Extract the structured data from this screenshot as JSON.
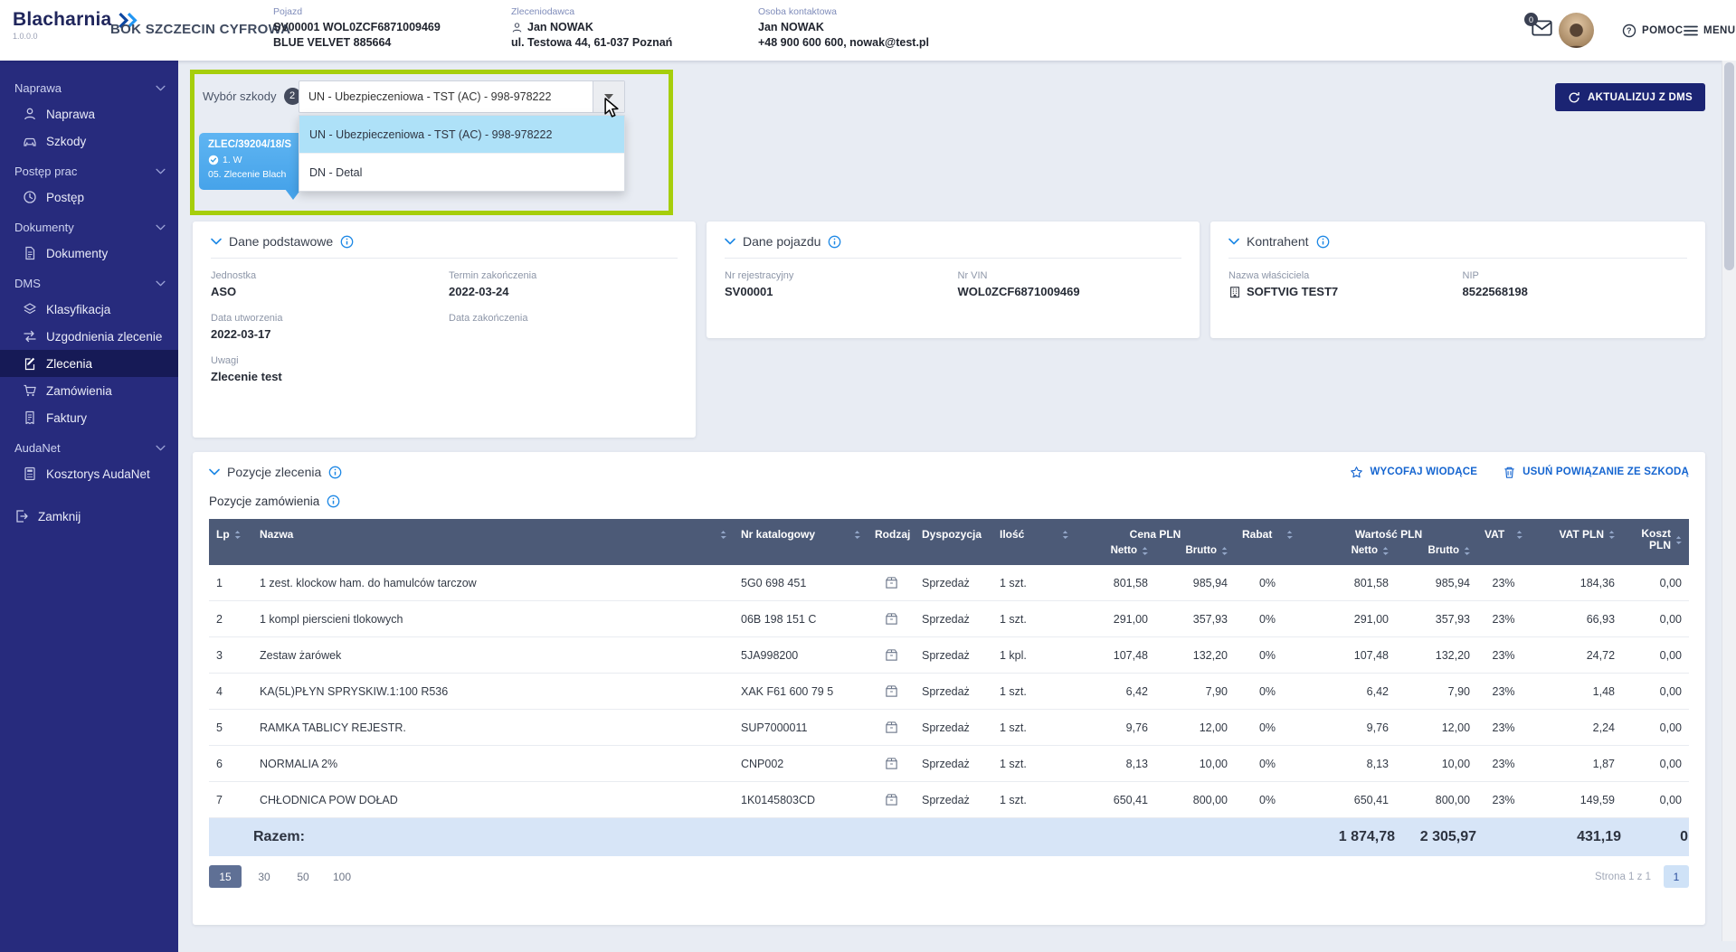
{
  "app": {
    "title": "Blacharnia",
    "version": "1.0.0.0",
    "subtitle": "BOK SZCZECIN CYFROWA"
  },
  "header": {
    "vehicle": {
      "label": "Pojazd",
      "line1": "SV00001 WOL0ZCF6871009469",
      "line2": "BLUE VELVET 885664"
    },
    "client": {
      "label": "Zleceniodawca",
      "name": "Jan NOWAK",
      "address": "ul. Testowa 44, 61-037 Poznań"
    },
    "contact": {
      "label": "Osoba kontaktowa",
      "name": "Jan NOWAK",
      "phone_email": "+48 900 600 600, nowak@test.pl"
    },
    "mail_badge": "0",
    "help": "POMOC",
    "menu": "MENU"
  },
  "sidebar": {
    "sections": [
      {
        "label": "Naprawa",
        "items": [
          {
            "label": "Naprawa",
            "icon": "person-icon"
          },
          {
            "label": "Szkody",
            "icon": "car-icon"
          }
        ]
      },
      {
        "label": "Postęp prac",
        "items": [
          {
            "label": "Postęp",
            "icon": "clock-icon"
          }
        ]
      },
      {
        "label": "Dokumenty",
        "items": [
          {
            "label": "Dokumenty",
            "icon": "document-icon"
          }
        ]
      },
      {
        "label": "DMS",
        "items": [
          {
            "label": "Klasyfikacja",
            "icon": "layers-icon"
          },
          {
            "label": "Uzgodnienia zlecenie",
            "icon": "exchange-icon"
          },
          {
            "label": "Zlecenia",
            "icon": "order-icon",
            "active": true
          },
          {
            "label": "Zamówienia",
            "icon": "cart-icon"
          },
          {
            "label": "Faktury",
            "icon": "invoice-icon"
          }
        ]
      },
      {
        "label": "AudaNet",
        "items": [
          {
            "label": "Kosztorys AudaNet",
            "icon": "calculator-icon"
          }
        ]
      }
    ],
    "footer_item": {
      "label": "Zamknij",
      "icon": "exit-icon"
    }
  },
  "damage_select": {
    "label": "Wybór szkody",
    "badge": "2",
    "separator": ":",
    "value": "UN - Ubezpieczeniowa - TST (AC) - 998-978222",
    "options": [
      {
        "label": "UN - Ubezpieczeniowa - TST (AC) - 998-978222",
        "selected": true
      },
      {
        "label": "DN - Detal",
        "selected": false
      }
    ]
  },
  "order_card": {
    "number": "ZLEC/39204/18/S",
    "status": "1. W",
    "stage": "05. Zlecenie Blach"
  },
  "update_button": "AKTUALIZUJ Z DMS",
  "cards": {
    "basic": {
      "title": "Dane podstawowe",
      "fields": [
        {
          "label": "Jednostka",
          "value": "ASO"
        },
        {
          "label": "Termin zakończenia",
          "value": "2022-03-24"
        },
        {
          "label": "Data utworzenia",
          "value": "2022-03-17"
        },
        {
          "label": "Data zakończenia",
          "value": ""
        },
        {
          "label": "Uwagi",
          "value": "Zlecenie test"
        }
      ]
    },
    "vehicle": {
      "title": "Dane pojazdu",
      "fields": [
        {
          "label": "Nr rejestracyjny",
          "value": "SV00001"
        },
        {
          "label": "Nr VIN",
          "value": "WOL0ZCF6871009469"
        }
      ]
    },
    "contractor": {
      "title": "Kontrahent",
      "fields": [
        {
          "label": "Nazwa właściciela",
          "value": "SOFTVIG TEST7",
          "icon": "building-icon"
        },
        {
          "label": "NIP",
          "value": "8522568198"
        }
      ]
    }
  },
  "positions": {
    "title": "Pozycje zlecenia",
    "subtitle": "Pozycje zamówienia",
    "actions": [
      {
        "label": "WYCOFAJ WIODĄCE",
        "icon": "star-icon"
      },
      {
        "label": "USUŃ POWIĄZANIE ZE SZKODĄ",
        "icon": "trash-icon"
      }
    ],
    "table": {
      "columns": [
        "Lp",
        "Nazwa",
        "Nr katalogowy",
        "Rodzaj",
        "Dyspozycja",
        "Ilość",
        "Cena PLN",
        "Rabat",
        "Wartość PLN",
        "VAT",
        "VAT PLN",
        "Koszt PLN"
      ],
      "subcolumns": [
        "Netto",
        "Brutto"
      ],
      "rows": [
        {
          "lp": "1",
          "name": "1 zest. klockow ham. do hamulców tarczow",
          "catalog": "5G0 698 451",
          "type_icon": "package-icon",
          "dispo": "Sprzedaż",
          "qty": "1 szt.",
          "price_net": "801,58",
          "price_gross": "985,94",
          "discount": "0%",
          "value_net": "801,58",
          "value_gross": "985,94",
          "vat": "23%",
          "vat_pln": "184,36",
          "cost": "0,00"
        },
        {
          "lp": "2",
          "name": "1 kompl pierscieni tlokowych",
          "catalog": "06B 198 151 C",
          "type_icon": "package-icon",
          "dispo": "Sprzedaż",
          "qty": "1 szt.",
          "price_net": "291,00",
          "price_gross": "357,93",
          "discount": "0%",
          "value_net": "291,00",
          "value_gross": "357,93",
          "vat": "23%",
          "vat_pln": "66,93",
          "cost": "0,00"
        },
        {
          "lp": "3",
          "name": "Zestaw żarówek",
          "catalog": "5JA998200",
          "type_icon": "package-icon",
          "dispo": "Sprzedaż",
          "qty": "1 kpl.",
          "price_net": "107,48",
          "price_gross": "132,20",
          "discount": "0%",
          "value_net": "107,48",
          "value_gross": "132,20",
          "vat": "23%",
          "vat_pln": "24,72",
          "cost": "0,00"
        },
        {
          "lp": "4",
          "name": "KA(5L)PŁYN SPRYSKIW.1:100 R536",
          "catalog": "XAK F61 600 79 5",
          "type_icon": "package-icon",
          "dispo": "Sprzedaż",
          "qty": "1 szt.",
          "price_net": "6,42",
          "price_gross": "7,90",
          "discount": "0%",
          "value_net": "6,42",
          "value_gross": "7,90",
          "vat": "23%",
          "vat_pln": "1,48",
          "cost": "0,00"
        },
        {
          "lp": "5",
          "name": "RAMKA TABLICY REJESTR.",
          "catalog": "SUP7000011",
          "type_icon": "package-icon",
          "dispo": "Sprzedaż",
          "qty": "1 szt.",
          "price_net": "9,76",
          "price_gross": "12,00",
          "discount": "0%",
          "value_net": "9,76",
          "value_gross": "12,00",
          "vat": "23%",
          "vat_pln": "2,24",
          "cost": "0,00"
        },
        {
          "lp": "6",
          "name": "NORMALIA 2%",
          "catalog": "CNP002",
          "type_icon": "package-icon",
          "dispo": "Sprzedaż",
          "qty": "1 szt.",
          "price_net": "8,13",
          "price_gross": "10,00",
          "discount": "0%",
          "value_net": "8,13",
          "value_gross": "10,00",
          "vat": "23%",
          "vat_pln": "1,87",
          "cost": "0,00"
        },
        {
          "lp": "7",
          "name": "CHŁODNICA POW DOŁAD",
          "catalog": "1K0145803CD",
          "type_icon": "package-icon",
          "dispo": "Sprzedaż",
          "qty": "1 szt.",
          "price_net": "650,41",
          "price_gross": "800,00",
          "discount": "0%",
          "value_net": "650,41",
          "value_gross": "800,00",
          "vat": "23%",
          "vat_pln": "149,59",
          "cost": "0,00"
        }
      ],
      "total": {
        "label": "Razem:",
        "value_net": "1 874,78",
        "value_gross": "2 305,97",
        "vat_pln": "431,19",
        "cost": "0"
      }
    },
    "pagination": {
      "sizes": [
        "15",
        "30",
        "50",
        "100"
      ],
      "active_size": "15",
      "info": "Strona 1 z 1",
      "page": "1"
    }
  }
}
